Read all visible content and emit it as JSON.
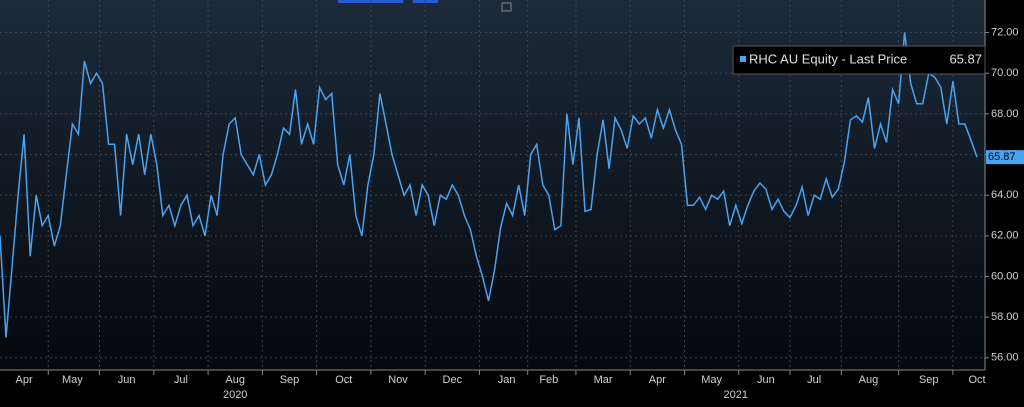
{
  "chart_data": {
    "type": "line",
    "series": [
      {
        "name": "RHC AU Equity - Last Price",
        "color": "#4aa3f0",
        "last_label": "65.87",
        "values": [
          62,
          57,
          60.5,
          64,
          67,
          61,
          64,
          62.5,
          63,
          61.5,
          62.5,
          65,
          67.5,
          67,
          70.6,
          69.5,
          70,
          69.5,
          66.5,
          66.5,
          63,
          67,
          65.5,
          67,
          65,
          67,
          65.5,
          63,
          63.5,
          62.5,
          63.5,
          64,
          62.5,
          63,
          62,
          64,
          63,
          66,
          67.5,
          67.8,
          66,
          65.5,
          65,
          66,
          64.5,
          65,
          66,
          67.3,
          67,
          69.2,
          66.5,
          67.5,
          66.5,
          69.3,
          68.7,
          69,
          65.5,
          64.5,
          66,
          63,
          62,
          64.5,
          66,
          69,
          67.5,
          66,
          65,
          64,
          64.5,
          63,
          64.5,
          64,
          62.5,
          64,
          63.8,
          64.5,
          64,
          63,
          62.3,
          61,
          60,
          58.8,
          60.3,
          62.4,
          63.6,
          63,
          64.5,
          63,
          66,
          66.5,
          64.5,
          64,
          62.3,
          62.5,
          68,
          65.5,
          67.8,
          63.2,
          63.3,
          66,
          67.7,
          65.3,
          67.8,
          67.2,
          66.3,
          67.9,
          67.5,
          67.8,
          66.8,
          68.2,
          67.3,
          68.2,
          67.2,
          66.5,
          63.5,
          63.5,
          63.9,
          63.3,
          64,
          63.8,
          64.2,
          62.5,
          63.5,
          62.6,
          63.5,
          64.2,
          64.6,
          64.3,
          63.3,
          63.8,
          63.2,
          62.9,
          63.5,
          64.4,
          63,
          64,
          63.8,
          64.8,
          63.9,
          64.3,
          65.6,
          67.7,
          67.9,
          67.6,
          68.8,
          66.3,
          67.5,
          66.6,
          69.2,
          68.5,
          72,
          69.5,
          68.5,
          68.5,
          70,
          69.8,
          69.3,
          67.5,
          69.6,
          67.5,
          67.5,
          66.7,
          65.87
        ]
      }
    ],
    "categories": [
      null,
      null,
      null,
      null,
      "Apr",
      null,
      null,
      null,
      null,
      null,
      null,
      null,
      "May",
      null,
      null,
      null,
      null,
      null,
      null,
      null,
      null,
      "Jun",
      null,
      null,
      null,
      null,
      null,
      null,
      null,
      null,
      "Jul",
      null,
      null,
      null,
      null,
      null,
      null,
      null,
      null,
      "Aug",
      null,
      null,
      null,
      null,
      null,
      null,
      null,
      null,
      "Sep",
      null,
      null,
      null,
      null,
      null,
      null,
      null,
      null,
      "Oct",
      null,
      null,
      null,
      null,
      null,
      null,
      null,
      null,
      "Nov",
      null,
      null,
      null,
      null,
      null,
      null,
      null,
      null,
      "Dec",
      null,
      null,
      null,
      null,
      null,
      null,
      null,
      null,
      "Jan",
      null,
      null,
      null,
      null,
      null,
      null,
      "Feb",
      null,
      null,
      null,
      null,
      null,
      null,
      null,
      null,
      "Mar",
      null,
      null,
      null,
      null,
      null,
      null,
      null,
      null,
      "Apr",
      null,
      null,
      null,
      null,
      null,
      null,
      null,
      null,
      "May",
      null,
      null,
      null,
      null,
      null,
      null,
      null,
      null,
      "Jun",
      null,
      null,
      null,
      null,
      null,
      null,
      null,
      "Jul",
      null,
      null,
      null,
      null,
      null,
      null,
      null,
      null,
      "Aug",
      null,
      null,
      null,
      null,
      null,
      null,
      null,
      null,
      null,
      "Sep",
      null,
      null,
      null,
      null,
      null,
      null,
      null,
      "Oct"
    ],
    "year_labels": [
      "2020",
      "2021"
    ],
    "ylim": [
      55.4,
      73.6
    ],
    "yticks": [
      {
        "value": 56,
        "label": "56.00"
      },
      {
        "value": 58,
        "label": "58.00"
      },
      {
        "value": 60,
        "label": "60.00"
      },
      {
        "value": 62,
        "label": "62.00"
      },
      {
        "value": 64,
        "label": "64.00"
      },
      {
        "value": 66,
        "label": "66.00"
      },
      {
        "value": 68,
        "label": "68.00"
      },
      {
        "value": 70,
        "label": "70.00"
      },
      {
        "value": 72,
        "label": "72.00"
      }
    ],
    "grid": true
  }
}
